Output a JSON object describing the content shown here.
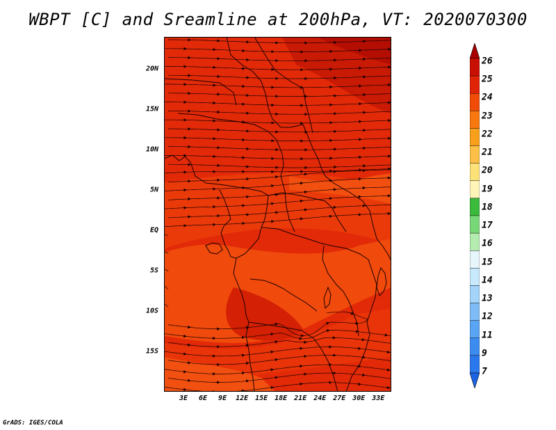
{
  "title": "WBPT [C] and Sreamline at 200hPa, VT: 2020070300",
  "credit": "GrADS: IGES/COLA",
  "map": {
    "lat_range": [
      -20,
      24
    ],
    "lon_range": [
      0,
      35
    ],
    "lat_ticks": [
      {
        "value": 20,
        "label": "20N"
      },
      {
        "value": 15,
        "label": "15N"
      },
      {
        "value": 10,
        "label": "10N"
      },
      {
        "value": 5,
        "label": "5N"
      },
      {
        "value": 0,
        "label": "EQ"
      },
      {
        "value": -5,
        "label": "5S"
      },
      {
        "value": -10,
        "label": "10S"
      },
      {
        "value": -15,
        "label": "15S"
      }
    ],
    "lon_ticks": [
      {
        "value": 3,
        "label": "3E"
      },
      {
        "value": 6,
        "label": "6E"
      },
      {
        "value": 9,
        "label": "9E"
      },
      {
        "value": 12,
        "label": "12E"
      },
      {
        "value": 15,
        "label": "15E"
      },
      {
        "value": 18,
        "label": "18E"
      },
      {
        "value": 21,
        "label": "21E"
      },
      {
        "value": 24,
        "label": "24E"
      },
      {
        "value": 27,
        "label": "27E"
      },
      {
        "value": 30,
        "label": "30E"
      },
      {
        "value": 33,
        "label": "33E"
      }
    ]
  },
  "colorbar": {
    "labels": [
      "7",
      "9",
      "11",
      "12",
      "13",
      "14",
      "15",
      "16",
      "17",
      "18",
      "19",
      "20",
      "21",
      "22",
      "23",
      "24",
      "25",
      "26"
    ],
    "colors": [
      "#1c64e4",
      "#2b78ec",
      "#3c8cf0",
      "#5aa4f4",
      "#7ebcf8",
      "#a4d4fa",
      "#c8e8fc",
      "#e6f6fa",
      "#b4ecb0",
      "#78d878",
      "#3cba3c",
      "#fff4b8",
      "#fce078",
      "#fcc048",
      "#f8a01c",
      "#f87810",
      "#f04c08",
      "#e02408",
      "#c81004",
      "#a80000"
    ]
  },
  "colors": {
    "field_base": "#e22a08",
    "field_warm": "#c81a04",
    "field_cool": "#f04a0c",
    "field_darkest": "#b40e02"
  }
}
